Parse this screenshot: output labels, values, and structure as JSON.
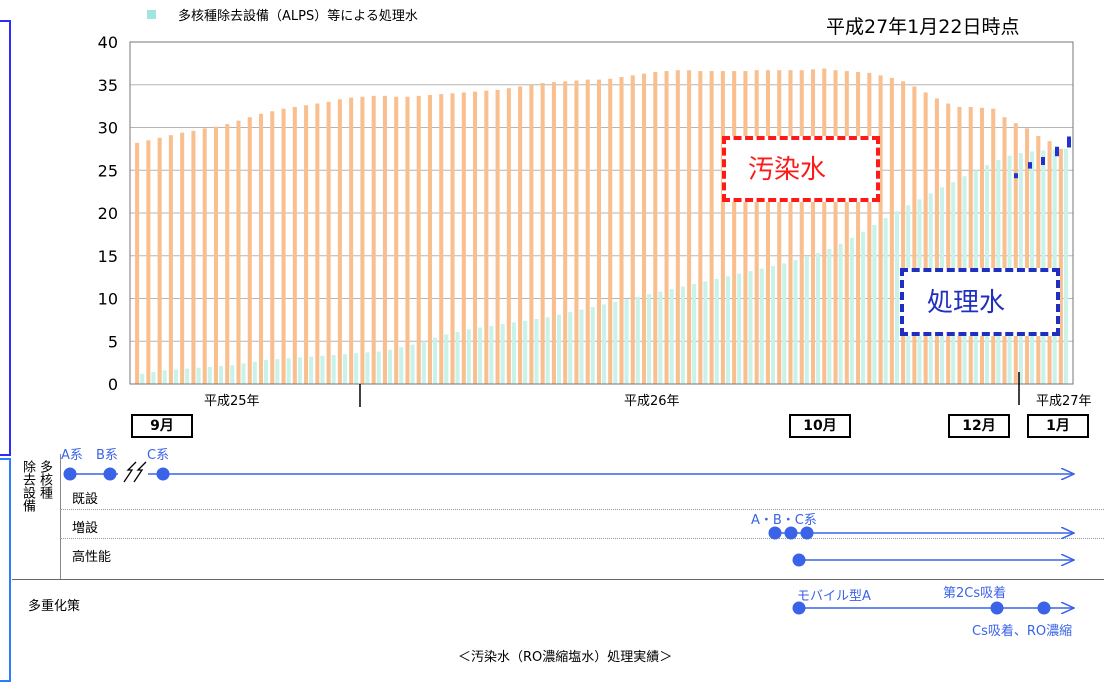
{
  "header": {
    "legend_label": "多核種除去設備（ALPS）等による処理水",
    "date_label": "平成27年1月22日時点"
  },
  "annotations": {
    "contaminated_label": "汚染水",
    "treated_label": "処理水"
  },
  "eras": [
    "平成25年",
    "平成26年",
    "平成27年"
  ],
  "month_labels": [
    "9月",
    "10月",
    "12月",
    "1月"
  ],
  "timeline": {
    "group_label": "多核種除去設備",
    "group_label_col1": "多核種",
    "group_label_col2": "除去設備",
    "rows": {
      "existing": "既設",
      "added": "増設",
      "high_perf": "高性能",
      "redundancy": "多重化策"
    },
    "events": {
      "a_line": "A系",
      "b_line": "B系",
      "c_line": "C系",
      "abc_lines": "A・B・C系",
      "mobile_a": "モバイル型A",
      "second_cs": "第2Cs吸着",
      "cs_ro": "Cs吸着、RO濃縮"
    }
  },
  "caption": "＜汚染水（RO濃縮塩水）処理実績＞",
  "colors": {
    "contaminated": "#f9bf8f",
    "treated": "#c8f2ea",
    "blue": "#3a63e8",
    "dark_blue": "#1f2fbf",
    "red": "#ff1a1a",
    "marker": "#2233cc"
  },
  "chart_data": {
    "type": "bar",
    "title": "",
    "xlabel": "",
    "ylabel": "",
    "ylim": [
      0,
      40
    ],
    "yticks": [
      0,
      5,
      10,
      15,
      20,
      25,
      30,
      35,
      40
    ],
    "grid": true,
    "series": [
      {
        "name": "汚染水",
        "values": [
          28.2,
          28.5,
          28.8,
          29.1,
          29.4,
          29.6,
          29.9,
          30.1,
          30.4,
          30.8,
          31.2,
          31.6,
          31.9,
          32.2,
          32.4,
          32.6,
          32.8,
          33.0,
          33.3,
          33.5,
          33.6,
          33.7,
          33.7,
          33.6,
          33.6,
          33.7,
          33.8,
          33.9,
          34.0,
          34.1,
          34.2,
          34.3,
          34.4,
          34.6,
          34.8,
          35.0,
          35.2,
          35.3,
          35.4,
          35.5,
          35.6,
          35.6,
          35.7,
          35.9,
          36.1,
          36.3,
          36.5,
          36.6,
          36.7,
          36.7,
          36.6,
          36.6,
          36.6,
          36.6,
          36.6,
          36.7,
          36.7,
          36.7,
          36.7,
          36.7,
          36.8,
          36.9,
          36.7,
          36.6,
          36.5,
          36.4,
          36.1,
          35.8,
          35.4,
          34.8,
          34.1,
          33.4,
          32.8,
          32.4,
          32.4,
          32.3,
          32.2,
          31.2,
          30.5,
          29.9,
          29.0,
          28.4,
          27.5
        ],
        "treated_values": [
          1.2,
          1.4,
          1.6,
          1.7,
          1.8,
          1.9,
          2.0,
          2.1,
          2.2,
          2.4,
          2.6,
          2.8,
          2.9,
          3.0,
          3.1,
          3.2,
          3.3,
          3.4,
          3.5,
          3.6,
          3.7,
          3.8,
          4.0,
          4.3,
          4.6,
          5.0,
          5.4,
          5.8,
          6.1,
          6.4,
          6.6,
          6.8,
          7.0,
          7.2,
          7.4,
          7.6,
          7.8,
          8.1,
          8.4,
          8.7,
          9.0,
          9.3,
          9.6,
          9.9,
          10.2,
          10.5,
          10.8,
          11.1,
          11.4,
          11.7,
          12.0,
          12.3,
          12.6,
          12.9,
          13.2,
          13.5,
          13.8,
          14.1,
          14.5,
          14.9,
          15.3,
          15.8,
          16.4,
          17.1,
          17.8,
          18.6,
          19.4,
          20.2,
          20.9,
          21.6,
          22.3,
          23.0,
          23.6,
          24.3,
          25.0,
          25.6,
          26.2,
          26.7,
          27.0,
          27.2,
          27.3,
          27.4,
          27.5
        ]
      }
    ],
    "recent_markers_top": [
      24.3,
      25.6,
      26.2,
      27.4,
      28.6
    ]
  }
}
